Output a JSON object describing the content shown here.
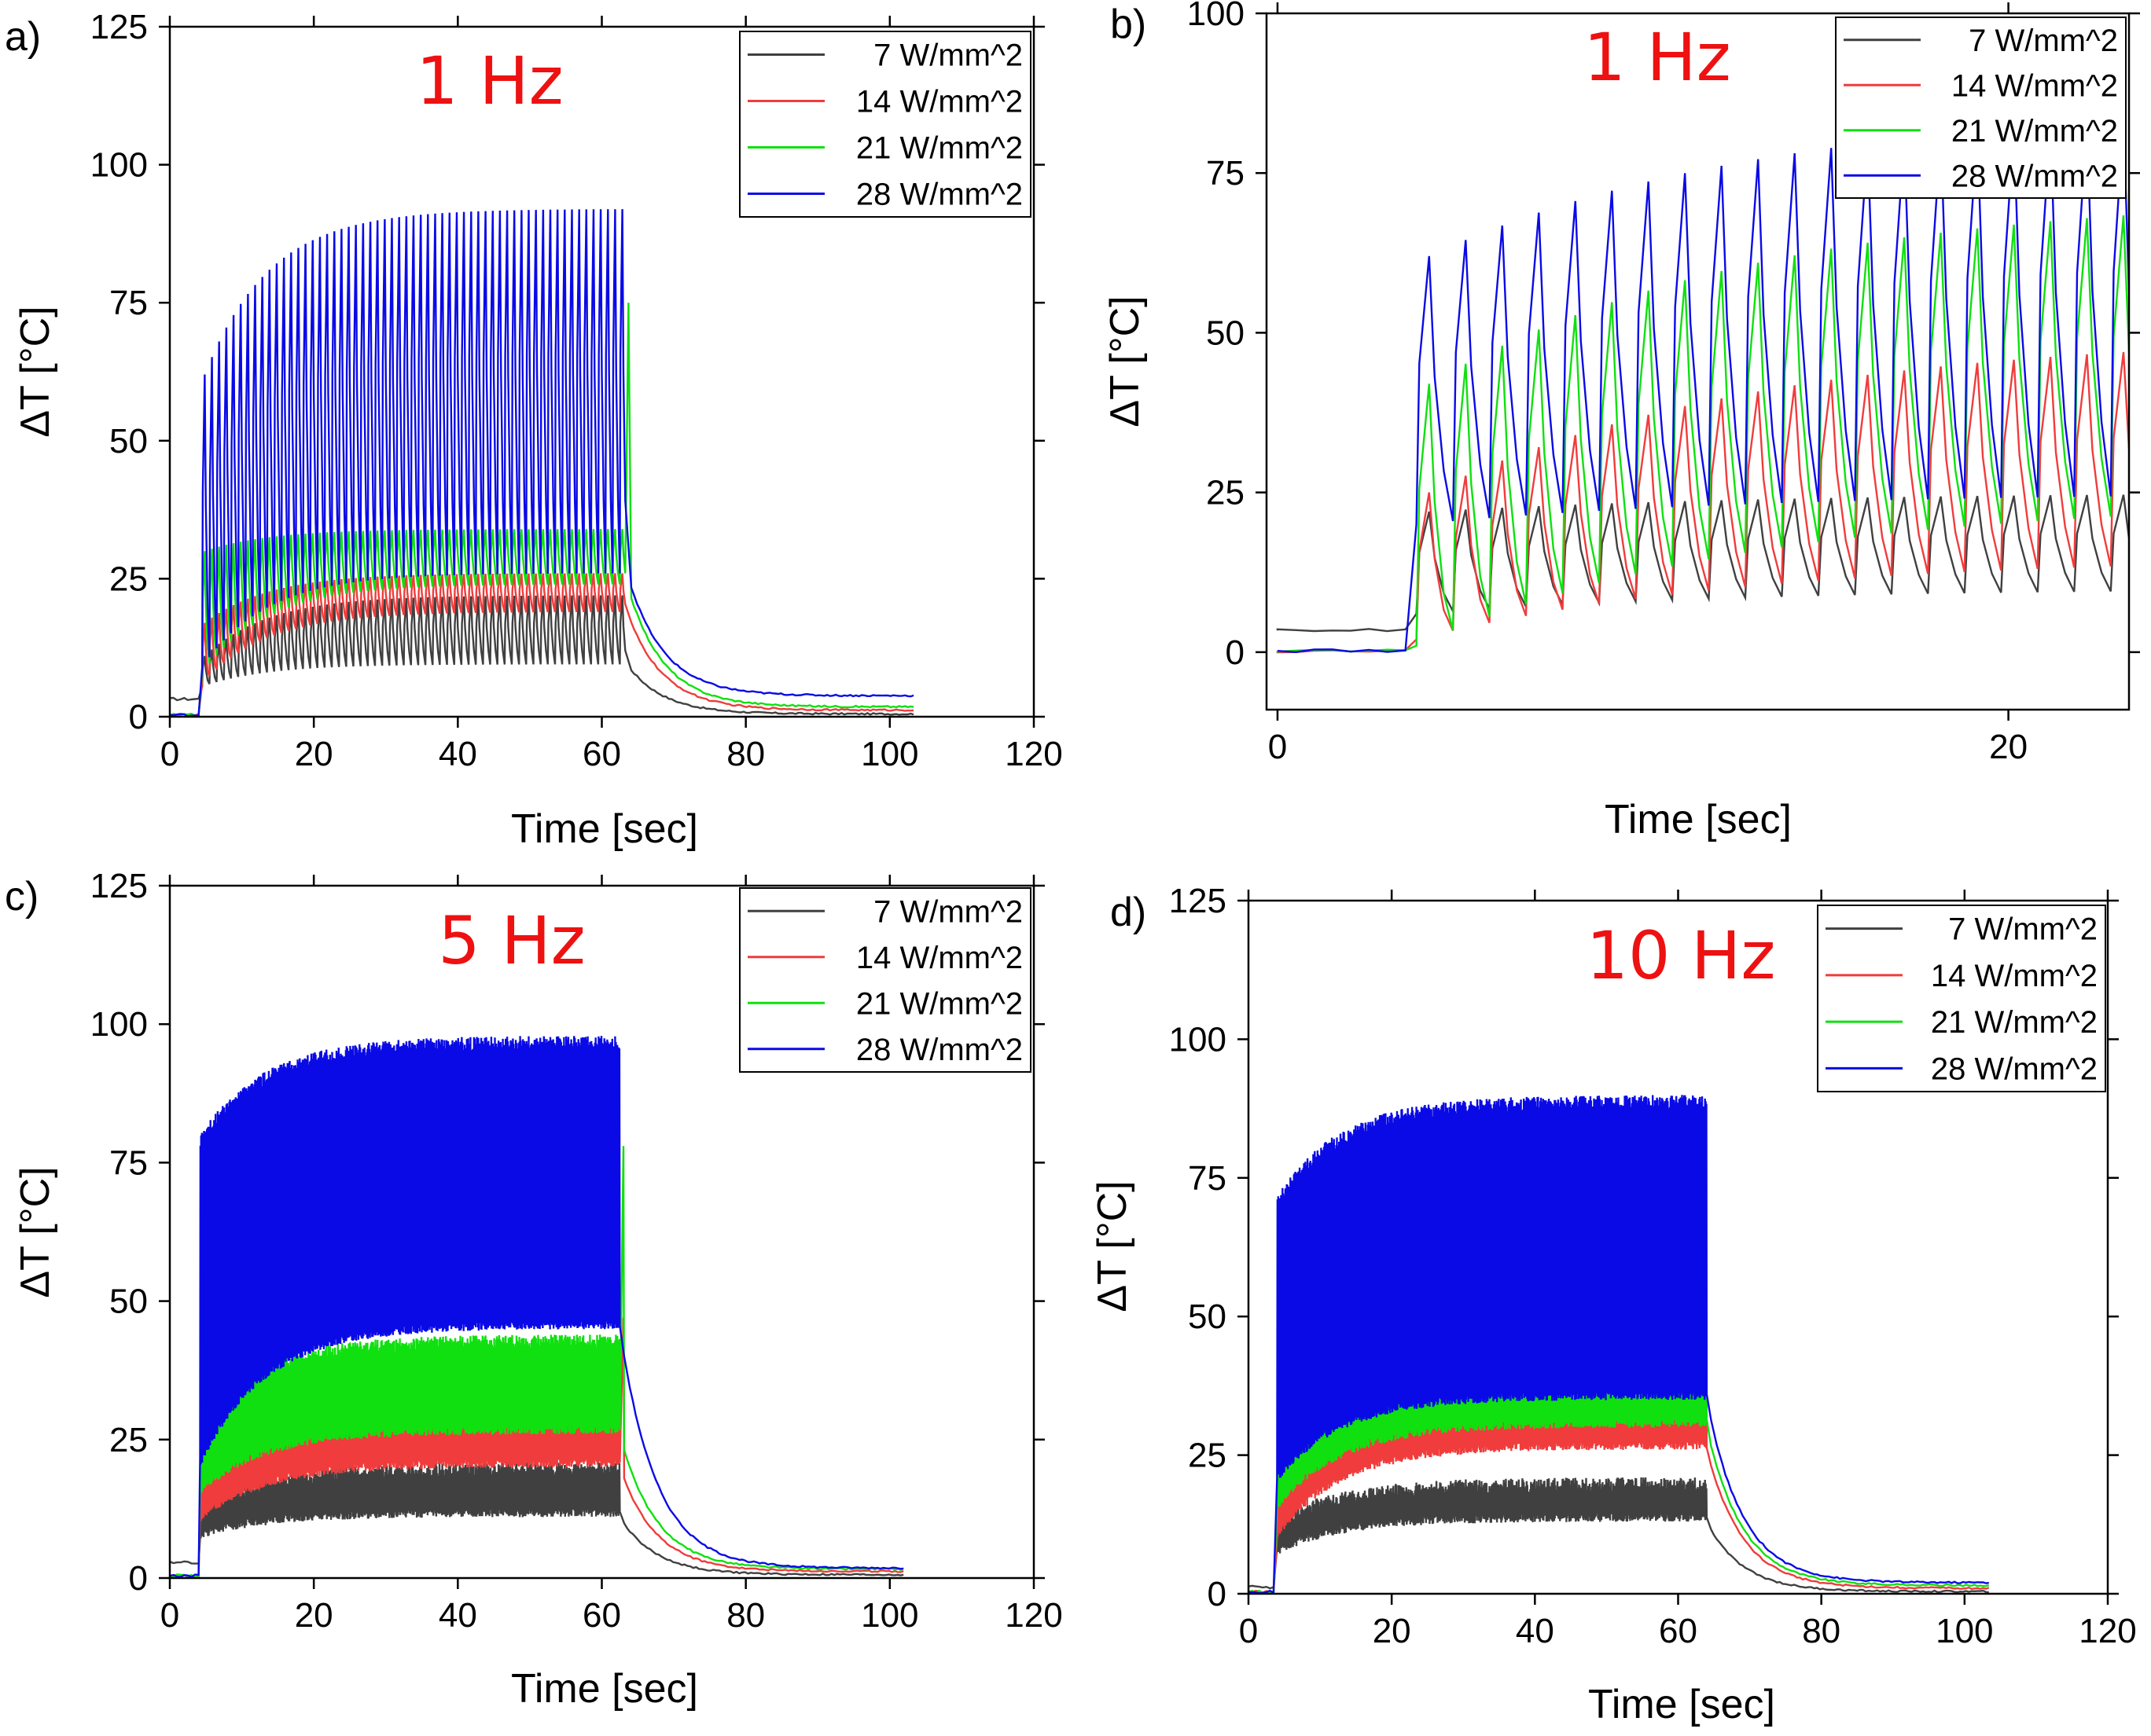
{
  "figure": {
    "colors": {
      "7 W/mm^2": "#404040",
      "14 W/mm^2": "#f03c3c",
      "21 W/mm^2": "#10e010",
      "28 W/mm^2": "#0a0ae6",
      "frequency_label": "#ee1111"
    }
  },
  "chart_data": [
    {
      "panel": "a)",
      "type": "line",
      "annotation": "1 Hz",
      "xlabel": "Time [sec]",
      "ylabel": "ΔT [°C]",
      "xlim": [
        0,
        120
      ],
      "ylim": [
        0,
        125
      ],
      "xticks": [
        0,
        20,
        40,
        60,
        80,
        100,
        120
      ],
      "yticks": [
        0,
        25,
        50,
        75,
        100,
        125
      ],
      "legend": [
        "7 W/mm^2",
        "14 W/mm^2",
        "21 W/mm^2",
        "28 W/mm^2"
      ],
      "legend_position": "top-right",
      "pulse_frequency_hz": 1,
      "pulse_on": [
        4.5,
        63.5
      ],
      "x_end": 103.5,
      "series": [
        {
          "name": "7 W/mm^2",
          "baseline": 3.2,
          "trough": [
            5.5,
            9.5
          ],
          "peak": [
            11,
            22
          ],
          "decay_end": 0.5
        },
        {
          "name": "14 W/mm^2",
          "baseline": 0.3,
          "trough": [
            6,
            19
          ],
          "peak": [
            17,
            26
          ],
          "decay_end": 1.2
        },
        {
          "name": "21 W/mm^2",
          "baseline": 0.3,
          "trough": [
            8,
            24
          ],
          "peak": [
            30,
            34
          ],
          "final_peak": 75,
          "decay_end": 1.8
        },
        {
          "name": "28 W/mm^2",
          "baseline": 0.3,
          "trough": [
            9,
            26
          ],
          "peak": [
            62,
            92
          ],
          "decay_end": 3.8
        }
      ]
    },
    {
      "panel": "b)",
      "type": "line",
      "annotation": "1 Hz",
      "xlabel": "Time [sec]",
      "ylabel": "ΔT [°C]",
      "xlim": [
        -0.3,
        23.3
      ],
      "ylim": [
        -9,
        100
      ],
      "xticks": [
        0,
        20
      ],
      "yticks": [
        0,
        25,
        50,
        75,
        100
      ],
      "legend": [
        "7 W/mm^2",
        "14 W/mm^2",
        "21 W/mm^2",
        "28 W/mm^2"
      ],
      "legend_position": "top-right",
      "pulse_frequency_hz": 1,
      "pulse_on": [
        3.8,
        23.3
      ],
      "series": [
        {
          "name": "7 W/mm^2",
          "baseline": 3.4,
          "trough": [
            6,
            10
          ],
          "peak": [
            22,
            25
          ]
        },
        {
          "name": "14 W/mm^2",
          "baseline": 0.2,
          "trough": [
            2,
            15
          ],
          "peak": [
            25,
            50
          ]
        },
        {
          "name": "21 W/mm^2",
          "baseline": 0.2,
          "trough": [
            1,
            24
          ],
          "peak": [
            42,
            72
          ]
        },
        {
          "name": "28 W/mm^2",
          "baseline": 0.2,
          "trough": [
            20,
            25
          ],
          "peak": [
            62,
            86
          ]
        }
      ]
    },
    {
      "panel": "c)",
      "type": "line",
      "annotation": "5 Hz",
      "xlabel": "Time [sec]",
      "ylabel": "ΔT [°C]",
      "xlim": [
        0,
        120
      ],
      "ylim": [
        0,
        125
      ],
      "xticks": [
        0,
        20,
        40,
        60,
        80,
        100,
        120
      ],
      "yticks": [
        0,
        25,
        50,
        75,
        100,
        125
      ],
      "legend": [
        "7 W/mm^2",
        "14 W/mm^2",
        "21 W/mm^2",
        "28 W/mm^2"
      ],
      "legend_position": "top-right",
      "pulse_frequency_hz": 5,
      "pulse_on": [
        4.2,
        62.5
      ],
      "x_end": 102,
      "series": [
        {
          "name": "7 W/mm^2",
          "baseline": 2.8,
          "band_low": [
            7,
            11
          ],
          "band_high": [
            13,
            21
          ],
          "decay_end": 0.6
        },
        {
          "name": "14 W/mm^2",
          "baseline": 0.4,
          "band_low": [
            10,
            20
          ],
          "band_high": [
            22,
            35
          ],
          "final_peak": 47,
          "decay_end": 1.2
        },
        {
          "name": "21 W/mm^2",
          "baseline": 0.4,
          "band_low": [
            15,
            26
          ],
          "band_high": [
            30,
            44
          ],
          "final_peak": 78,
          "decay_end": 1.6
        },
        {
          "name": "28 W/mm^2",
          "baseline": 0.4,
          "band_low": [
            20,
            45
          ],
          "band_high": [
            80,
            98
          ],
          "decay_end": 1.8
        }
      ]
    },
    {
      "panel": "d)",
      "type": "line",
      "annotation": "10 Hz",
      "xlabel": "Time [sec]",
      "ylabel": "ΔT [°C]",
      "xlim": [
        0,
        120
      ],
      "ylim": [
        0,
        125
      ],
      "xticks": [
        0,
        20,
        40,
        60,
        80,
        100,
        120
      ],
      "yticks": [
        0,
        25,
        50,
        75,
        100,
        125
      ],
      "legend": [
        "7 W/mm^2",
        "14 W/mm^2",
        "21 W/mm^2",
        "28 W/mm^2"
      ],
      "legend_position": "top-right",
      "pulse_frequency_hz": 10,
      "pulse_on": [
        4,
        64
      ],
      "x_end": 103.5,
      "series": [
        {
          "name": "7 W/mm^2",
          "baseline": 1.2,
          "band_low": [
            7,
            13
          ],
          "band_high": [
            14,
            21
          ],
          "decay_end": 0.4
        },
        {
          "name": "14 W/mm^2",
          "baseline": 0.3,
          "band_low": [
            10,
            26
          ],
          "band_high": [
            24,
            38
          ],
          "decay_end": 1.0
        },
        {
          "name": "21 W/mm^2",
          "baseline": 0.3,
          "band_low": [
            15,
            30
          ],
          "band_high": [
            33,
            50
          ],
          "decay_end": 1.5
        },
        {
          "name": "28 W/mm^2",
          "baseline": 0.3,
          "band_low": [
            20,
            35
          ],
          "band_high": [
            72,
            90
          ],
          "decay_end": 2.0
        }
      ]
    }
  ]
}
